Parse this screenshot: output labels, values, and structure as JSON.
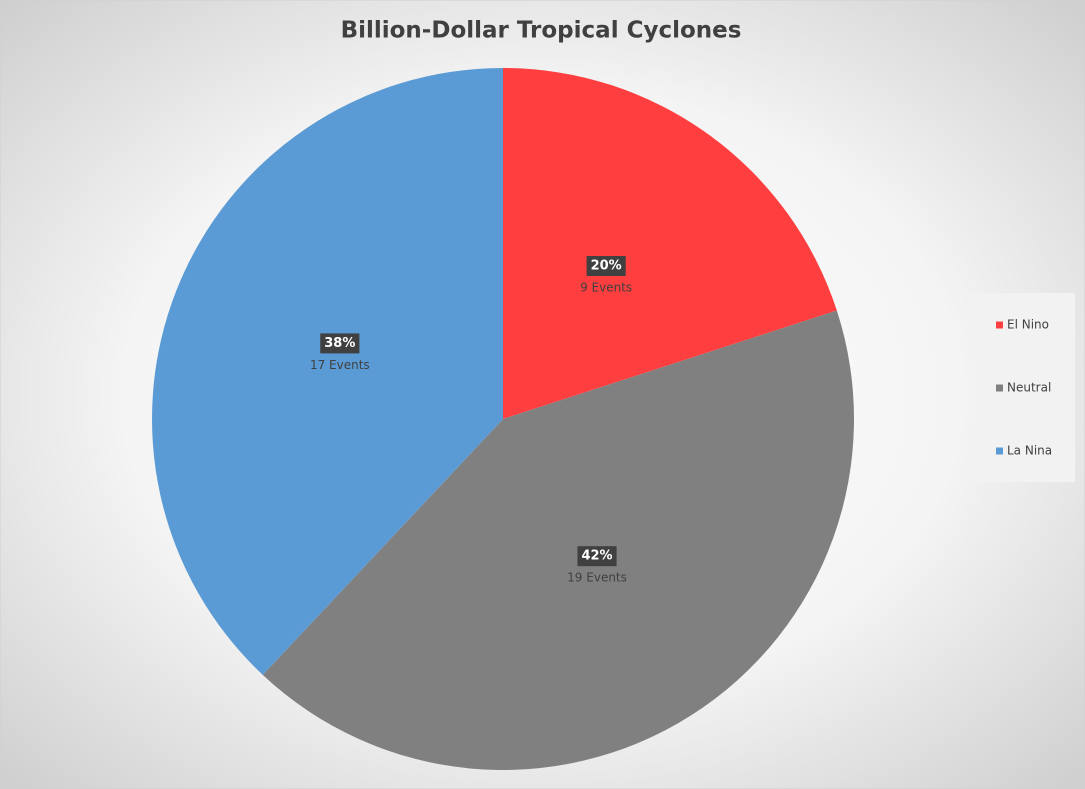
{
  "chart_data": {
    "type": "pie",
    "title": "Billion-Dollar Tropical Cyclones",
    "categories": [
      "El Nino",
      "Neutral",
      "La Nina"
    ],
    "values": [
      20,
      42,
      38
    ],
    "value_labels": [
      "20%",
      "42%",
      "38%"
    ],
    "counts": [
      9,
      19,
      17
    ],
    "count_labels": [
      "9 Events",
      "19 Events",
      "17 Events"
    ],
    "colors": [
      "#ff3f3f",
      "#808080",
      "#5b9bd5"
    ],
    "legend": "right"
  }
}
